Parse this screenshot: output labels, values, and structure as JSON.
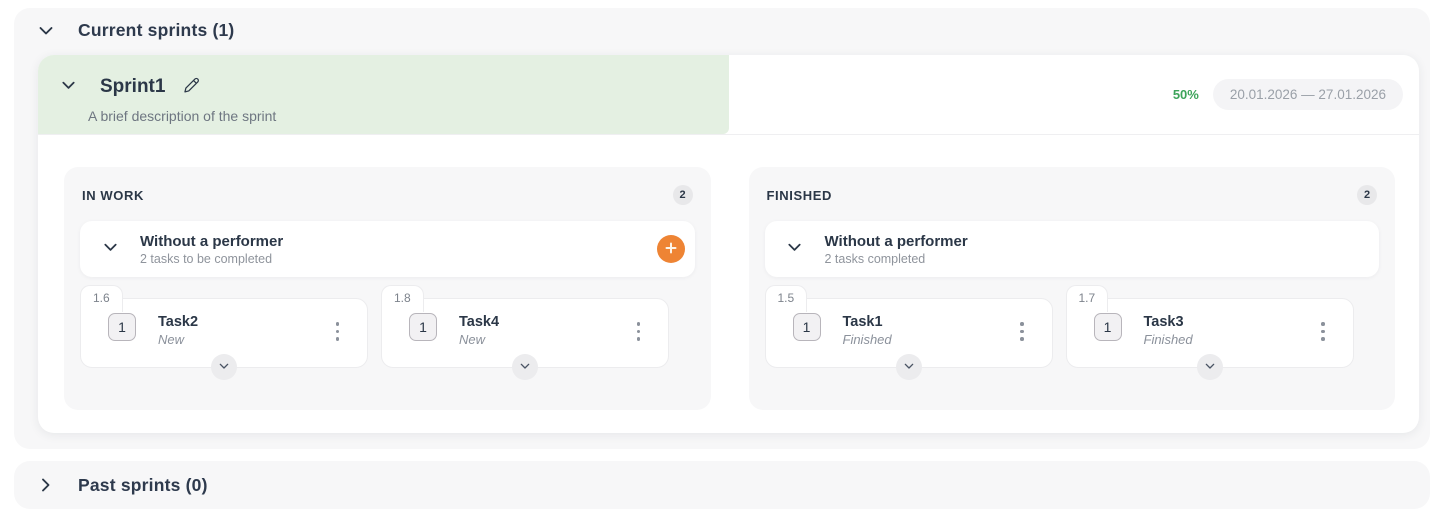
{
  "section_current": {
    "title": "Current sprints (1)"
  },
  "sprint": {
    "name": "Sprint1",
    "description": "A brief description of the sprint",
    "progress_label": "50%",
    "progress_value": 50,
    "date_range": "20.01.2026 — 27.01.2026"
  },
  "columns": [
    {
      "title": "IN WORK",
      "count": "2",
      "group": {
        "title": "Without a performer",
        "subtitle": "2 tasks to be completed"
      },
      "tasks": [
        {
          "ref": "1.6",
          "badge": "1",
          "title": "Task2",
          "status": "New"
        },
        {
          "ref": "1.8",
          "badge": "1",
          "title": "Task4",
          "status": "New"
        }
      ]
    },
    {
      "title": "FINISHED",
      "count": "2",
      "group": {
        "title": "Without a performer",
        "subtitle": "2 tasks completed"
      },
      "tasks": [
        {
          "ref": "1.5",
          "badge": "1",
          "title": "Task1",
          "status": "Finished"
        },
        {
          "ref": "1.7",
          "badge": "1",
          "title": "Task3",
          "status": "Finished"
        }
      ]
    }
  ],
  "section_past": {
    "title": "Past sprints (0)"
  },
  "colors": {
    "accent_green": "#3da45a",
    "progress_fill_green": "#e4f0e2",
    "accent_orange": "#ee8434"
  }
}
